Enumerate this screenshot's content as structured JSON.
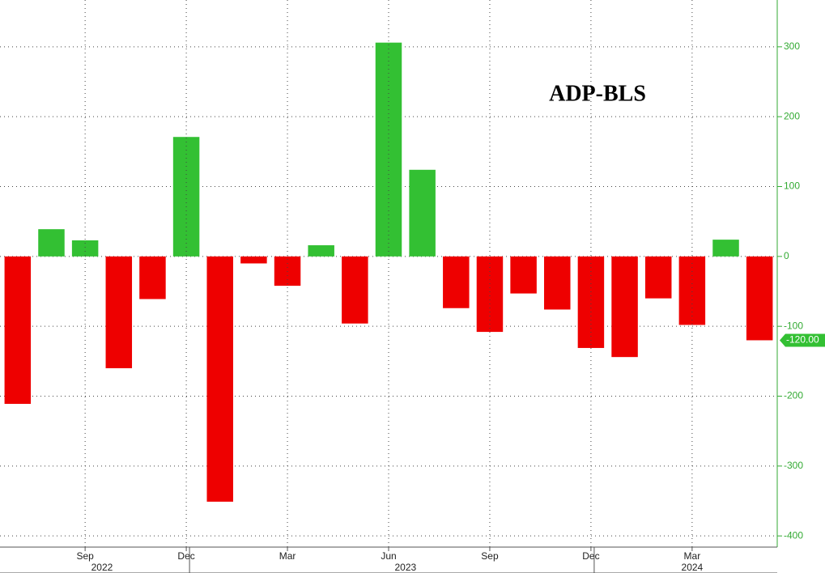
{
  "chart_data": {
    "type": "bar",
    "title": "ADP-BLS",
    "categories": [
      null,
      null,
      "Sep",
      null,
      null,
      "Dec",
      null,
      null,
      "Mar",
      null,
      null,
      "Jun",
      null,
      null,
      "Sep",
      null,
      null,
      "Dec",
      null,
      null,
      "Mar",
      null,
      null
    ],
    "year_groups": [
      {
        "label": "2022",
        "from": 0,
        "to": 5
      },
      {
        "label": "2023",
        "from": 6,
        "to": 17
      },
      {
        "label": "2024",
        "from": 18,
        "to": 22
      }
    ],
    "values": [
      -211,
      39,
      23,
      -160,
      -61,
      171,
      -351,
      -10,
      -42,
      16,
      -96,
      306,
      124,
      -74,
      -108,
      -53,
      -76,
      -131,
      -144,
      -60,
      -98,
      24,
      -120
    ],
    "last_value_label": "-120.00",
    "positive_color": "#33c033",
    "negative_color": "#ee0000",
    "axis_color": "#33aa33",
    "ylim": [
      -416,
      367
    ],
    "yticks": [
      300,
      200,
      100,
      0,
      -100,
      -200,
      -300,
      -400
    ],
    "grid": true
  }
}
